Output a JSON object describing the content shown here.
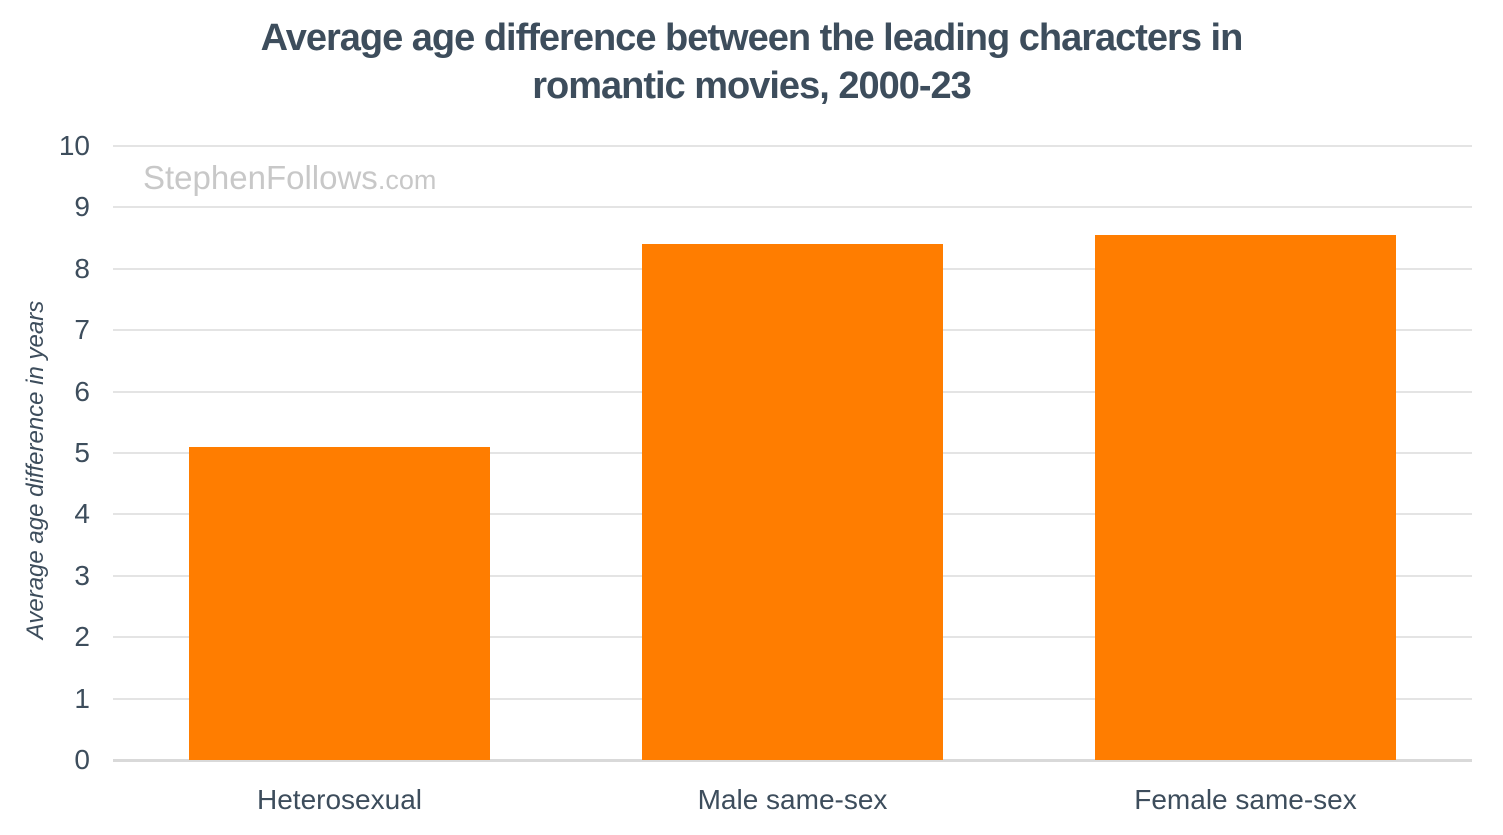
{
  "header": {
    "title_lines": [
      "Average age difference between the leading characters in",
      "romantic movies, 2000-23"
    ]
  },
  "watermark": {
    "main": "StephenFollows",
    "tld": ".com"
  },
  "chart_data": {
    "type": "bar",
    "title": "Average age difference between the leading characters in romantic movies, 2000-23",
    "categories": [
      "Heterosexual",
      "Male same-sex",
      "Female same-sex"
    ],
    "values": [
      5.1,
      8.4,
      8.55
    ],
    "xlabel": "",
    "ylabel": "Average age difference in years",
    "ylim": [
      0,
      10
    ],
    "yticks": [
      0,
      1,
      2,
      3,
      4,
      5,
      6,
      7,
      8,
      9,
      10
    ],
    "grid": "horizontal",
    "legend": "none",
    "bar_color": "#ff7d00"
  },
  "colors": {
    "background": "#ffffff",
    "text": "#3d4d5c",
    "bar": "#ff7d00",
    "gridline": "#e4e4e4",
    "baseline": "#d9d9d9",
    "watermark": "#c8c8c8"
  }
}
